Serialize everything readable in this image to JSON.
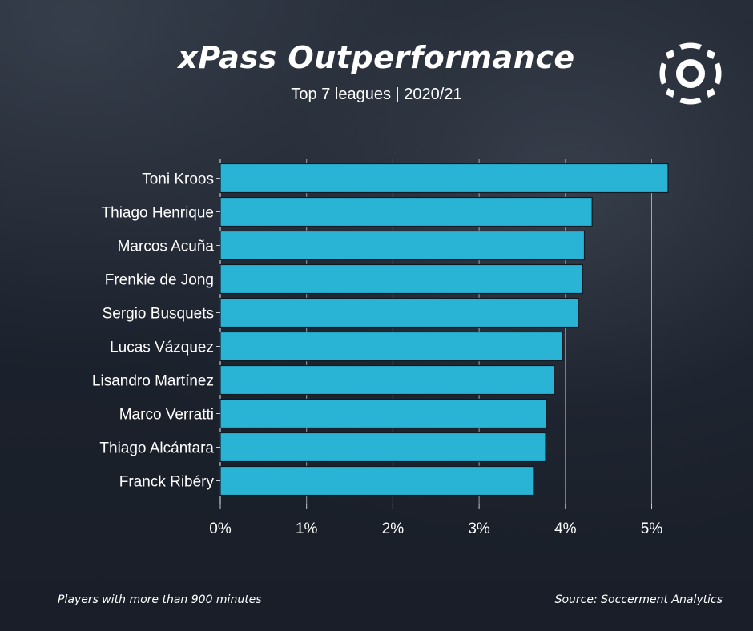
{
  "header": {
    "title": "xPass Outperformance",
    "subtitle": "Top 7 leagues | 2020/21"
  },
  "footer": {
    "note": "Players with more than 900 minutes",
    "source": "Source: Soccerment Analytics"
  },
  "logo": {
    "icon": "soccerment-ball-logo-icon"
  },
  "colors": {
    "bar": "#29b4d6",
    "bar_edge": "#0f1b24",
    "background": "#1a202c",
    "text": "#ffffff"
  },
  "chart_data": {
    "type": "bar",
    "orientation": "horizontal",
    "categories": [
      "Toni Kroos",
      "Thiago Henrique",
      "Marcos Acuña",
      "Frenkie de Jong",
      "Sergio Busquets",
      "Lucas Vázquez",
      "Lisandro Martínez",
      "Marco Verratti",
      "Thiago Alcántara",
      "Franck Ribéry"
    ],
    "values": [
      5.19,
      4.31,
      4.22,
      4.2,
      4.15,
      3.97,
      3.87,
      3.78,
      3.77,
      3.63
    ],
    "xlim": [
      0,
      5.3
    ],
    "xticks": [
      0,
      1,
      2,
      3,
      4,
      5
    ],
    "xtick_labels": [
      "0%",
      "1%",
      "2%",
      "3%",
      "4%",
      "5%"
    ],
    "grid": true
  }
}
